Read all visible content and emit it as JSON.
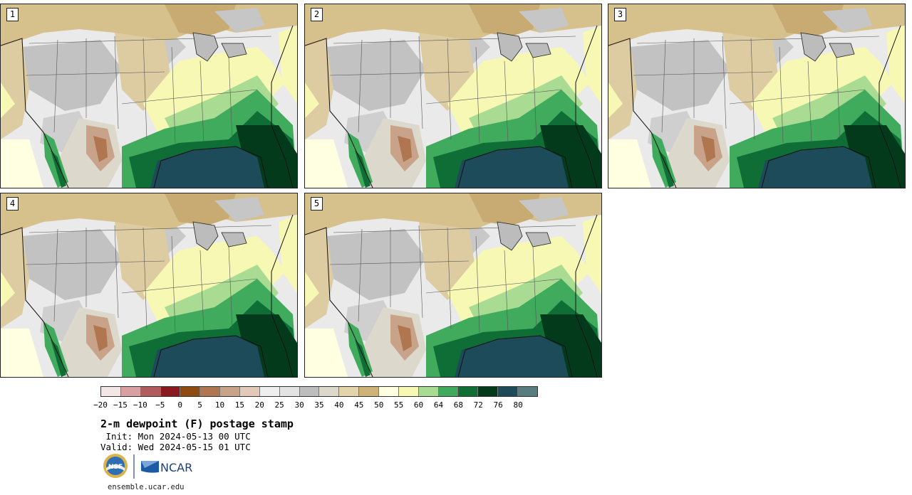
{
  "panels": [
    {
      "label": "1"
    },
    {
      "label": "2"
    },
    {
      "label": "3"
    },
    {
      "label": "4"
    },
    {
      "label": "5"
    }
  ],
  "colorbar": {
    "colors": [
      "#f3e6e6",
      "#d8a0a1",
      "#b25b5d",
      "#8a1a20",
      "#8e4b12",
      "#b07650",
      "#c8a38a",
      "#e3c9b8",
      "#efefef",
      "#e3e3e3",
      "#bdbdbd",
      "#dcd8cc",
      "#e3d4ab",
      "#cfb278",
      "#ffffe2",
      "#f7f8b4",
      "#a9dc92",
      "#41ab5d",
      "#0e6e36",
      "#033a1c",
      "#1e4b59",
      "#597c7e"
    ],
    "ticks": [
      "−20",
      "−15",
      "−10",
      "−5",
      "0",
      "5",
      "10",
      "15",
      "20",
      "25",
      "30",
      "35",
      "40",
      "45",
      "50",
      "55",
      "60",
      "64",
      "68",
      "72",
      "76",
      "80"
    ]
  },
  "title": "2-m dewpoint (F) postage stamp",
  "init_line": " Init: Mon 2024-05-13 00 UTC",
  "valid_line": "Valid: Wed 2024-05-15 01 UTC",
  "logos": {
    "nsf": "NSF",
    "ncar": "NCAR"
  },
  "footer_url": "ensemble.ucar.edu"
}
